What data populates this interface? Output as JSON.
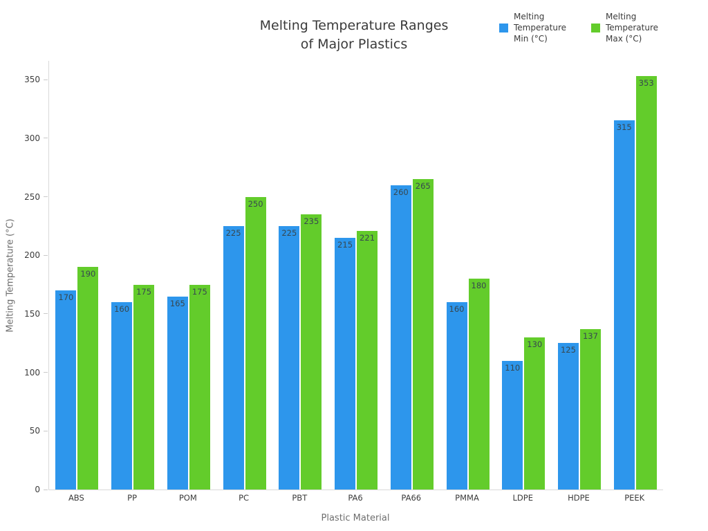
{
  "title": {
    "lines": [
      "Melting Temperature Ranges",
      "of Major Plastics"
    ]
  },
  "chart_data": {
    "type": "bar",
    "title": "Melting Temperature Ranges of Major Plastics",
    "xlabel": "Plastic Material",
    "ylabel": "Melting Temperature (°C)",
    "categories": [
      "ABS",
      "PP",
      "POM",
      "PC",
      "PBT",
      "PA6",
      "PA66",
      "PMMA",
      "LDPE",
      "HDPE",
      "PEEK"
    ],
    "series": [
      {
        "name": "Melting Temperature Min (°C)",
        "color": "#2D96EC",
        "values": [
          170,
          160,
          165,
          225,
          225,
          215,
          260,
          160,
          110,
          125,
          315
        ]
      },
      {
        "name": "Melting Temperature Max (°C)",
        "color": "#63CC2B",
        "values": [
          190,
          175,
          175,
          250,
          235,
          221,
          265,
          180,
          130,
          137,
          353
        ]
      }
    ],
    "ylim": [
      0,
      366
    ],
    "yticks": [
      0,
      50,
      100,
      150,
      200,
      250,
      300,
      350
    ],
    "grid": false,
    "legend_position": "top-right",
    "bar_value_labels": true
  }
}
